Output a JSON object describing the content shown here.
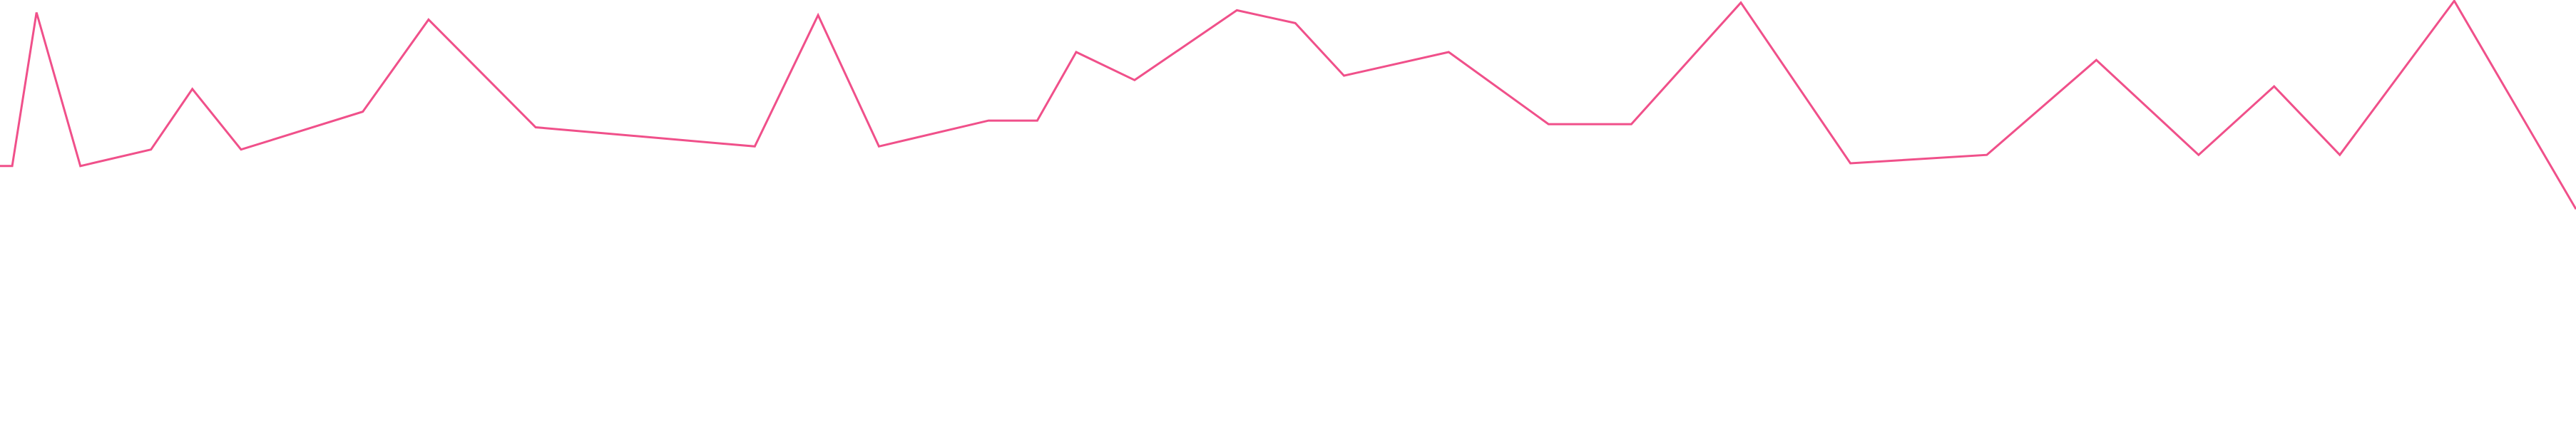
{
  "chart_data": {
    "type": "line",
    "title": "",
    "xlabel": "",
    "ylabel": "",
    "axes_visible": false,
    "grid": false,
    "legend": "none",
    "ylim": [
      0,
      100
    ],
    "series": [
      {
        "color": "#f0508a",
        "points": [
          {
            "x": 0,
            "y": 62.7
          },
          {
            "x": 0.5,
            "y": 62.7
          },
          {
            "x": 1.5,
            "y": 97.2
          },
          {
            "x": 3.3,
            "y": 62.7
          },
          {
            "x": 6.2,
            "y": 66.4
          },
          {
            "x": 7.9,
            "y": 80.0
          },
          {
            "x": 9.9,
            "y": 66.4
          },
          {
            "x": 14.9,
            "y": 74.9
          },
          {
            "x": 17.6,
            "y": 95.6
          },
          {
            "x": 22.0,
            "y": 71.4
          },
          {
            "x": 31.0,
            "y": 67.1
          },
          {
            "x": 33.6,
            "y": 96.6
          },
          {
            "x": 36.1,
            "y": 67.1
          },
          {
            "x": 40.6,
            "y": 72.9
          },
          {
            "x": 42.6,
            "y": 72.9
          },
          {
            "x": 44.2,
            "y": 88.3
          },
          {
            "x": 46.6,
            "y": 82.0
          },
          {
            "x": 50.8,
            "y": 97.7
          },
          {
            "x": 53.2,
            "y": 94.8
          },
          {
            "x": 55.2,
            "y": 83.0
          },
          {
            "x": 59.5,
            "y": 88.3
          },
          {
            "x": 63.6,
            "y": 72.1
          },
          {
            "x": 67.0,
            "y": 72.1
          },
          {
            "x": 71.5,
            "y": 99.4
          },
          {
            "x": 76.0,
            "y": 63.3
          },
          {
            "x": 81.6,
            "y": 65.2
          },
          {
            "x": 86.1,
            "y": 86.5
          },
          {
            "x": 90.3,
            "y": 65.2
          },
          {
            "x": 93.4,
            "y": 80.6
          },
          {
            "x": 96.1,
            "y": 65.2
          },
          {
            "x": 100.8,
            "y": 99.8
          },
          {
            "x": 105.8,
            "y": 53.0
          }
        ]
      }
    ]
  }
}
